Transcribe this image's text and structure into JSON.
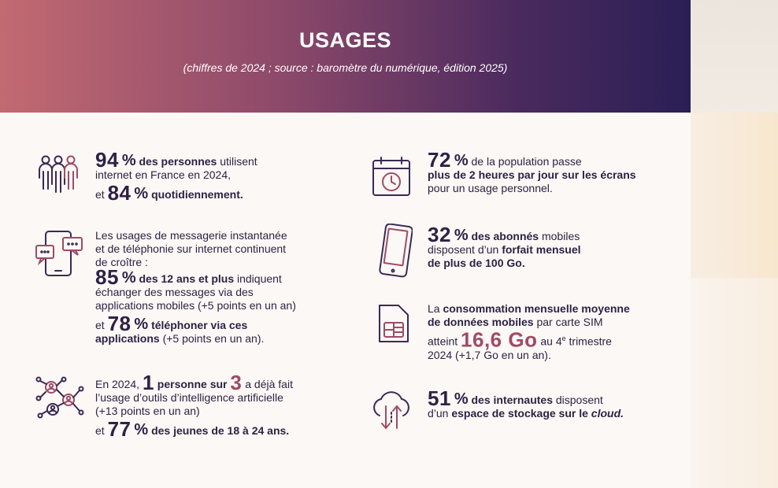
{
  "header": {
    "title": "USAGES",
    "subtitle": "(chiffres de 2024 ; source : baromètre du numérique, édition 2025)"
  },
  "left": {
    "internet": {
      "v1": "94",
      "pct": "%",
      "t1a": "des personnes",
      "t1b": " utilisent",
      "t2": "internet en France en 2024,",
      "t3a": "et ",
      "v2": "84",
      "t3b": "quotidiennement."
    },
    "messaging": {
      "intro1": "Les usages de messagerie instantanée",
      "intro2": "et de téléphonie sur internet continuent",
      "intro3": "de croître :",
      "v1": "85",
      "s1a": "des 12 ans et plus",
      "s1b": " indiquent",
      "s2": "échanger des messages via des",
      "s3": "applications mobiles (+5 points en un an)",
      "s4a": "et ",
      "v2": "78",
      "s4b": "téléphoner via ces",
      "s5a": "applications",
      "s5b": " (+5 points en un an)."
    },
    "ai": {
      "t1a": "En 2024, ",
      "v1": "1",
      "t1b": "personne sur",
      "v2": "3",
      "t1c": " a déjà fait",
      "t2": "l’usage d’outils d’intelligence artificielle",
      "t3": "(+13 points en un an)",
      "t4a": "et ",
      "v3": "77",
      "t4b": "des jeunes de 18 à 24 ans."
    }
  },
  "right": {
    "screens": {
      "v": "72",
      "t1": " de la population passe",
      "t2": "plus de 2 heures par jour sur les écrans",
      "t3": "pour un usage personnel."
    },
    "mobile": {
      "v": "32",
      "t1a": "des abonnés",
      "t1b": " mobiles",
      "t2a": "disposent d’un ",
      "t2b": "forfait mensuel",
      "t3": "de plus de 100 Go."
    },
    "data": {
      "t1a": "La ",
      "t1b": "consommation mensuelle moyenne",
      "t2a": "de données mobiles",
      "t2b": " par carte SIM",
      "t3a": "atteint ",
      "v": "16,6 Go",
      "t3b": " au 4",
      "t3sup": "e",
      "t3c": " trimestre",
      "t4": "2024 (+1,7 Go en un an)."
    },
    "cloud": {
      "v": "51",
      "t1a": "des internautes",
      "t1b": " disposent",
      "t2a": "d’un ",
      "t2b": "espace de stockage sur le ",
      "t2c": "cloud."
    }
  },
  "colors": {
    "dark": "#2d2244",
    "accent": "#a04a66",
    "icon": "#3a2a55"
  },
  "icons": [
    "people-icon",
    "phone-chat-icon",
    "ai-network-icon",
    "calendar-clock-icon",
    "smartphone-icon",
    "sim-card-icon",
    "cloud-transfer-icon"
  ]
}
